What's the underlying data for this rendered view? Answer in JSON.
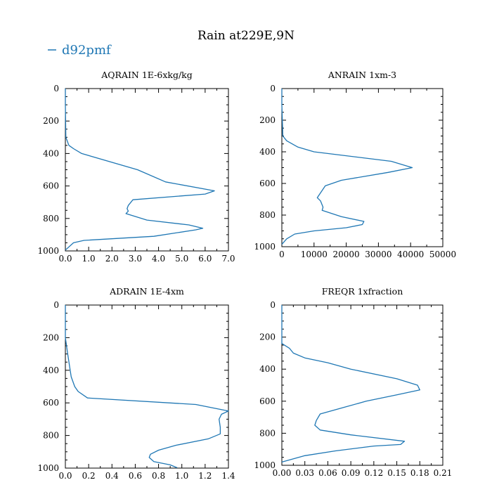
{
  "figure": {
    "title": "Rain at229E,9N",
    "legend_label": "d92pmf",
    "legend_color": "#1f77b4"
  },
  "chart_data": [
    {
      "type": "line",
      "title": "AQRAIN  1E-6xkg/kg",
      "x_ticks": [
        "0.0",
        "1.0",
        "2.0",
        "3.0",
        "4.0",
        "5.0",
        "6.0",
        "7.0"
      ],
      "xlim": [
        0,
        7
      ],
      "y_ticks": [
        "0",
        "200",
        "400",
        "600",
        "800",
        "1000"
      ],
      "ylim": [
        0,
        1000
      ],
      "y_inverted": true,
      "series": [
        {
          "name": "d92pmf",
          "points": [
            [
              0,
              0
            ],
            [
              0,
              100
            ],
            [
              0.02,
              300
            ],
            [
              0.15,
              350
            ],
            [
              0.35,
              370
            ],
            [
              0.7,
              400
            ],
            [
              3.1,
              500
            ],
            [
              4.3,
              575
            ],
            [
              6.4,
              630
            ],
            [
              6.0,
              650
            ],
            [
              2.9,
              685
            ],
            [
              2.7,
              720
            ],
            [
              2.65,
              740
            ],
            [
              2.7,
              755
            ],
            [
              2.6,
              770
            ],
            [
              3.5,
              810
            ],
            [
              5.3,
              840
            ],
            [
              5.9,
              860
            ],
            [
              5.6,
              870
            ],
            [
              3.8,
              910
            ],
            [
              0.8,
              935
            ],
            [
              0.35,
              950
            ],
            [
              0,
              995
            ]
          ]
        }
      ]
    },
    {
      "type": "line",
      "title": "ANRAIN  1xm-3",
      "x_ticks": [
        "0",
        "10000",
        "20000",
        "30000",
        "40000",
        "50000"
      ],
      "xlim": [
        0,
        50000
      ],
      "y_ticks": [
        "0",
        "200",
        "400",
        "600",
        "800",
        "1000"
      ],
      "ylim": [
        0,
        1000
      ],
      "y_inverted": true,
      "series": [
        {
          "name": "d92pmf",
          "points": [
            [
              0,
              0
            ],
            [
              0,
              100
            ],
            [
              300,
              300
            ],
            [
              1500,
              330
            ],
            [
              5000,
              370
            ],
            [
              10000,
              400
            ],
            [
              34000,
              460
            ],
            [
              40500,
              500
            ],
            [
              33000,
              530
            ],
            [
              18500,
              580
            ],
            [
              13500,
              615
            ],
            [
              11000,
              690
            ],
            [
              12000,
              710
            ],
            [
              12800,
              750
            ],
            [
              12500,
              770
            ],
            [
              18500,
              810
            ],
            [
              25500,
              840
            ],
            [
              25000,
              860
            ],
            [
              20000,
              880
            ],
            [
              10000,
              900
            ],
            [
              4000,
              920
            ],
            [
              1500,
              950
            ],
            [
              0,
              985
            ]
          ]
        }
      ]
    },
    {
      "type": "line",
      "title": "ADRAIN  1E-4xm",
      "x_ticks": [
        "0.0",
        "0.2",
        "0.4",
        "0.6",
        "0.8",
        "1.0",
        "1.2",
        "1.4"
      ],
      "xlim": [
        0,
        1.4
      ],
      "y_ticks": [
        "0",
        "200",
        "400",
        "600",
        "800",
        "1000"
      ],
      "ylim": [
        0,
        1000
      ],
      "y_inverted": true,
      "series": [
        {
          "name": "d92pmf",
          "points": [
            [
              0,
              0
            ],
            [
              0,
              200
            ],
            [
              0.02,
              300
            ],
            [
              0.05,
              440
            ],
            [
              0.08,
              500
            ],
            [
              0.11,
              530
            ],
            [
              0.19,
              570
            ],
            [
              1.12,
              610
            ],
            [
              1.4,
              650
            ],
            [
              1.34,
              670
            ],
            [
              1.32,
              700
            ],
            [
              1.33,
              750
            ],
            [
              1.33,
              790
            ],
            [
              1.23,
              820
            ],
            [
              0.95,
              860
            ],
            [
              0.8,
              890
            ],
            [
              0.73,
              915
            ],
            [
              0.72,
              935
            ],
            [
              0.76,
              960
            ],
            [
              0.9,
              980
            ],
            [
              0.96,
              998
            ]
          ]
        }
      ]
    },
    {
      "type": "line",
      "title": "FREQR  1xfraction",
      "x_ticks": [
        "0.00",
        "0.03",
        "0.06",
        "0.09",
        "0.12",
        "0.15",
        "0.18",
        "0.21"
      ],
      "xlim": [
        0,
        0.21
      ],
      "y_ticks": [
        "0",
        "200",
        "400",
        "600",
        "800",
        "1000"
      ],
      "ylim": [
        0,
        1000
      ],
      "y_inverted": true,
      "series": [
        {
          "name": "d92pmf",
          "points": [
            [
              0,
              0
            ],
            [
              0,
              150
            ],
            [
              0,
              240
            ],
            [
              0.01,
              270
            ],
            [
              0.015,
              300
            ],
            [
              0.03,
              330
            ],
            [
              0.06,
              360
            ],
            [
              0.09,
              400
            ],
            [
              0.15,
              460
            ],
            [
              0.177,
              500
            ],
            [
              0.18,
              530
            ],
            [
              0.15,
              560
            ],
            [
              0.11,
              600
            ],
            [
              0.08,
              640
            ],
            [
              0.05,
              680
            ],
            [
              0.045,
              720
            ],
            [
              0.043,
              750
            ],
            [
              0.05,
              780
            ],
            [
              0.09,
              810
            ],
            [
              0.16,
              850
            ],
            [
              0.155,
              870
            ],
            [
              0.12,
              880
            ],
            [
              0.07,
              910
            ],
            [
              0.03,
              940
            ],
            [
              0,
              980
            ]
          ]
        }
      ]
    }
  ]
}
